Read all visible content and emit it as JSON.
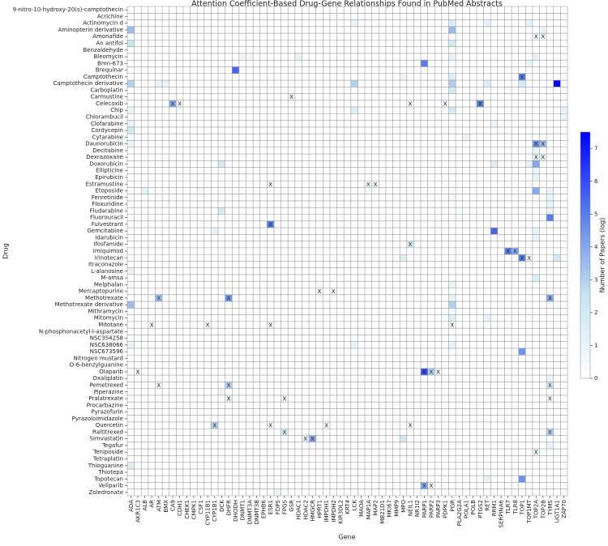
{
  "chart_data": {
    "type": "heatmap",
    "title": "Attention Coefficient-Based Drug-Gene Relationships Found in PubMed Abstracts",
    "x_label": "Gene",
    "y_label": "Drug",
    "colorbar_label": "Number of Papers (log)",
    "colorbar_lim": [
      0,
      7.5
    ],
    "colorbar_ticks": [
      0,
      1,
      2,
      3,
      4,
      5,
      6,
      7
    ],
    "colormap": [
      "#ffffff",
      "#c8e6f2",
      "#5a7ee8",
      "#0000ff"
    ],
    "rows": [
      "9-nitro-10-hydroxy-20(s)-camptothecin",
      "Acrichine",
      "Actinomycin d",
      "Aminopterin derivative",
      "Amonafide",
      "An antifol",
      "Benzaldehyde",
      "Bleomycin",
      "Bmn-673",
      "Brequinar",
      "Camptothecin",
      "Camptothecin derivative",
      "Carboplatin",
      "Carmustine",
      "Celecoxib",
      "Chip",
      "Chlorambucil",
      "Clofarabine",
      "Cordycepin",
      "Cytarabine",
      "Daunorubicin",
      "Decitabine",
      "Dexrazoxane",
      "Doxorubicin",
      "Ellipticine",
      "Epirubicin",
      "Estramustine",
      "Etoposide",
      "Fenretinide",
      "Floxuridine",
      "Fludarabine",
      "Fluorouracil",
      "Fulvestrant",
      "Gemcitabine",
      "Idarubicin",
      "Ifosfamide",
      "Imiquimod",
      "Irinotecan",
      "Itraconazole",
      "L-alanosine",
      "M-amsa",
      "Melphalan",
      "Mercaptopurine",
      "Methotrexate",
      "Methotrexate derivative",
      "Mithramycin",
      "Mitomycin",
      "Mitotane",
      "N-phosphonacetyl-l-aspartate",
      "NSC354258",
      "NSC638066",
      "NSC673596",
      "Nitrogen mustard",
      "O-6-benzylguanine",
      "Olaparib",
      "Oxaliplatin",
      "Pemetrexed",
      "Piperazine",
      "Pralatrexate",
      "Procarbazine",
      "Pyrazofurin",
      "Pyrazoloimidazole",
      "Quercetin",
      "Raltitrexed",
      "Simvastatin",
      "Tegafur",
      "Teniposide",
      "Tetraplatin",
      "Thioguanine",
      "Thiotepa",
      "Topotecan",
      "Veliparib",
      "Zoledronate"
    ],
    "columns": [
      "ADA",
      "AKR1C3",
      "ALB",
      "AR",
      "ATM",
      "BMX",
      "CA9",
      "CDH1",
      "CHEK1",
      "CMPK1",
      "CSF1",
      "CYP11B1",
      "CYP1B1",
      "DCK",
      "DHFR",
      "DHODH",
      "DNMT1",
      "DNMT3A",
      "DNMT3B",
      "EPHB6",
      "ESR1",
      "FDPS",
      "FPGS",
      "GSR",
      "HDAC1",
      "HDAC2",
      "HMGCR",
      "HPRT1",
      "IMPDH1",
      "IMPDH2",
      "KIR3DL2",
      "KRT4",
      "LCK",
      "MAOA",
      "MAP1A",
      "MAP2",
      "MB21D1",
      "MKI67",
      "MMP9",
      "MPO",
      "NEIL1",
      "NR1I2",
      "PARP1",
      "PARP2",
      "PARP3",
      "PDPK1",
      "PGR",
      "PLA2G2A",
      "POLA1",
      "POLB",
      "PTGS2",
      "RET",
      "RRM1",
      "SERPINA6",
      "TLR7",
      "TLR8",
      "TOP1",
      "TOP1MT",
      "TOP2A",
      "TOP2B",
      "TYMS",
      "UGT1A1",
      "ZAP70"
    ],
    "cells": [
      {
        "row": 2,
        "col": 32,
        "value": 1
      },
      {
        "row": 2,
        "col": 46,
        "value": 1.5
      },
      {
        "row": 2,
        "col": 51,
        "value": 1
      },
      {
        "row": 2,
        "col": 57,
        "value": 1
      },
      {
        "row": 3,
        "col": 0,
        "value": 3.5
      },
      {
        "row": 3,
        "col": 46,
        "value": 3.5
      },
      {
        "row": 3,
        "col": 59,
        "value": 1
      },
      {
        "row": 4,
        "col": 58,
        "value": 0.5,
        "label": "X"
      },
      {
        "row": 4,
        "col": 59,
        "value": 0.5,
        "label": "X"
      },
      {
        "row": 5,
        "col": 0,
        "value": 2.5
      },
      {
        "row": 5,
        "col": 46,
        "value": 2
      },
      {
        "row": 7,
        "col": 16,
        "value": 0.5
      },
      {
        "row": 7,
        "col": 17,
        "value": 0.5
      },
      {
        "row": 7,
        "col": 24,
        "value": 1
      },
      {
        "row": 7,
        "col": 46,
        "value": 1
      },
      {
        "row": 7,
        "col": 58,
        "value": 1
      },
      {
        "row": 8,
        "col": 42,
        "value": 5
      },
      {
        "row": 8,
        "col": 57,
        "value": 1
      },
      {
        "row": 9,
        "col": 15,
        "value": 5.5
      },
      {
        "row": 10,
        "col": 39,
        "value": 1
      },
      {
        "row": 10,
        "col": 46,
        "value": 1.5
      },
      {
        "row": 10,
        "col": 56,
        "value": 5,
        "label": "X"
      },
      {
        "row": 11,
        "col": 0,
        "value": 3
      },
      {
        "row": 11,
        "col": 4,
        "value": 1
      },
      {
        "row": 11,
        "col": 5,
        "value": 1
      },
      {
        "row": 11,
        "col": 32,
        "value": 3
      },
      {
        "row": 11,
        "col": 46,
        "value": 3
      },
      {
        "row": 11,
        "col": 51,
        "value": 1.5
      },
      {
        "row": 11,
        "col": 56,
        "value": 2
      },
      {
        "row": 11,
        "col": 61,
        "value": 7.4
      },
      {
        "row": 12,
        "col": 46,
        "value": 2
      },
      {
        "row": 12,
        "col": 56,
        "value": 0.5
      },
      {
        "row": 13,
        "col": 23,
        "value": 0.5,
        "label": "X"
      },
      {
        "row": 14,
        "col": 6,
        "value": 4,
        "label": "X"
      },
      {
        "row": 14,
        "col": 7,
        "value": 0.5,
        "label": "X"
      },
      {
        "row": 14,
        "col": 40,
        "value": 0.5,
        "label": "X"
      },
      {
        "row": 14,
        "col": 45,
        "value": 0.5,
        "label": "X"
      },
      {
        "row": 14,
        "col": 50,
        "value": 5,
        "label": "X"
      },
      {
        "row": 15,
        "col": 0,
        "value": 1
      },
      {
        "row": 15,
        "col": 32,
        "value": 1.5
      },
      {
        "row": 15,
        "col": 46,
        "value": 2
      },
      {
        "row": 15,
        "col": 62,
        "value": 1
      },
      {
        "row": 16,
        "col": 62,
        "value": 1
      },
      {
        "row": 17,
        "col": 0,
        "value": 1
      },
      {
        "row": 17,
        "col": 52,
        "value": 1
      },
      {
        "row": 18,
        "col": 0,
        "value": 2
      },
      {
        "row": 19,
        "col": 48,
        "value": 1
      },
      {
        "row": 20,
        "col": 0,
        "value": 1
      },
      {
        "row": 20,
        "col": 58,
        "value": 4.5,
        "label": "X"
      },
      {
        "row": 20,
        "col": 59,
        "value": 3.5,
        "label": "X"
      },
      {
        "row": 21,
        "col": 46,
        "value": 0.5
      },
      {
        "row": 21,
        "col": 58,
        "value": 1
      },
      {
        "row": 22,
        "col": 58,
        "value": 1,
        "label": "X"
      },
      {
        "row": 22,
        "col": 59,
        "value": 1,
        "label": "X"
      },
      {
        "row": 23,
        "col": 13,
        "value": 2
      },
      {
        "row": 23,
        "col": 52,
        "value": 1.5
      },
      {
        "row": 23,
        "col": 57,
        "value": 1
      },
      {
        "row": 23,
        "col": 58,
        "value": 4
      },
      {
        "row": 24,
        "col": 58,
        "value": 1
      },
      {
        "row": 25,
        "col": 39,
        "value": 0.5
      },
      {
        "row": 25,
        "col": 58,
        "value": 1
      },
      {
        "row": 26,
        "col": 20,
        "value": 0.5,
        "label": "X"
      },
      {
        "row": 26,
        "col": 34,
        "value": 0.5,
        "label": "X"
      },
      {
        "row": 26,
        "col": 35,
        "value": 0.5,
        "label": "X"
      },
      {
        "row": 27,
        "col": 2,
        "value": 1
      },
      {
        "row": 27,
        "col": 10,
        "value": 0.5
      },
      {
        "row": 27,
        "col": 58,
        "value": 4
      },
      {
        "row": 27,
        "col": 60,
        "value": 1
      },
      {
        "row": 28,
        "col": 46,
        "value": 0.5
      },
      {
        "row": 28,
        "col": 60,
        "value": 1
      },
      {
        "row": 29,
        "col": 60,
        "value": 1
      },
      {
        "row": 30,
        "col": 13,
        "value": 2
      },
      {
        "row": 30,
        "col": 60,
        "value": 1
      },
      {
        "row": 31,
        "col": 47,
        "value": 0.5
      },
      {
        "row": 31,
        "col": 60,
        "value": 5
      },
      {
        "row": 32,
        "col": 20,
        "value": 5,
        "label": "X"
      },
      {
        "row": 33,
        "col": 12,
        "value": 1
      },
      {
        "row": 33,
        "col": 52,
        "value": 5.5
      },
      {
        "row": 33,
        "col": 58,
        "value": 1
      },
      {
        "row": 34,
        "col": 58,
        "value": 1
      },
      {
        "row": 35,
        "col": 40,
        "value": 2,
        "label": "X"
      },
      {
        "row": 36,
        "col": 54,
        "value": 5,
        "label": "X"
      },
      {
        "row": 36,
        "col": 55,
        "value": 4,
        "label": "X"
      },
      {
        "row": 37,
        "col": 39,
        "value": 1.5
      },
      {
        "row": 37,
        "col": 56,
        "value": 5,
        "label": "X"
      },
      {
        "row": 37,
        "col": 57,
        "value": 0.5,
        "label": "X"
      },
      {
        "row": 37,
        "col": 61,
        "value": 2
      },
      {
        "row": 39,
        "col": 0,
        "value": 1
      },
      {
        "row": 40,
        "col": 58,
        "value": 1.5
      },
      {
        "row": 41,
        "col": 0,
        "value": 0.5
      },
      {
        "row": 41,
        "col": 46,
        "value": 1
      },
      {
        "row": 42,
        "col": 27,
        "value": 0.5,
        "label": "X"
      },
      {
        "row": 42,
        "col": 29,
        "value": 0.5,
        "label": "X"
      },
      {
        "row": 43,
        "col": 4,
        "value": 3.5,
        "label": "X"
      },
      {
        "row": 43,
        "col": 14,
        "value": 4.5,
        "label": "X"
      },
      {
        "row": 43,
        "col": 46,
        "value": 1
      },
      {
        "row": 43,
        "col": 60,
        "value": 4,
        "label": "X"
      },
      {
        "row": 44,
        "col": 0,
        "value": 3.5
      },
      {
        "row": 44,
        "col": 46,
        "value": 3
      },
      {
        "row": 45,
        "col": 46,
        "value": 0.5
      },
      {
        "row": 46,
        "col": 46,
        "value": 1.5
      },
      {
        "row": 46,
        "col": 51,
        "value": 1
      },
      {
        "row": 47,
        "col": 3,
        "value": 0.5,
        "label": "X"
      },
      {
        "row": 47,
        "col": 11,
        "value": 0.5,
        "label": "X"
      },
      {
        "row": 47,
        "col": 20,
        "value": 0.5,
        "label": "X"
      },
      {
        "row": 47,
        "col": 46,
        "value": 0.5,
        "label": "X"
      },
      {
        "row": 50,
        "col": 0,
        "value": 1
      },
      {
        "row": 50,
        "col": 32,
        "value": 1
      },
      {
        "row": 50,
        "col": 46,
        "value": 1
      },
      {
        "row": 51,
        "col": 56,
        "value": 4.5
      },
      {
        "row": 54,
        "col": 1,
        "value": 0.5,
        "label": "X"
      },
      {
        "row": 54,
        "col": 42,
        "value": 6,
        "label": "X"
      },
      {
        "row": 54,
        "col": 43,
        "value": 3,
        "label": "X"
      },
      {
        "row": 54,
        "col": 44,
        "value": 0.5,
        "label": "X"
      },
      {
        "row": 55,
        "col": 39,
        "value": 0.5
      },
      {
        "row": 55,
        "col": 60,
        "value": 1
      },
      {
        "row": 56,
        "col": 4,
        "value": 0.5,
        "label": "X"
      },
      {
        "row": 56,
        "col": 14,
        "value": 3,
        "label": "X"
      },
      {
        "row": 56,
        "col": 60,
        "value": 2,
        "label": "X"
      },
      {
        "row": 57,
        "col": 13,
        "value": 1
      },
      {
        "row": 58,
        "col": 14,
        "value": 1,
        "label": "X"
      },
      {
        "row": 58,
        "col": 22,
        "value": 0.5,
        "label": "X"
      },
      {
        "row": 58,
        "col": 60,
        "value": 0.5,
        "label": "X"
      },
      {
        "row": 62,
        "col": 12,
        "value": 3,
        "label": "X"
      },
      {
        "row": 62,
        "col": 20,
        "value": 0.5,
        "label": "X"
      },
      {
        "row": 62,
        "col": 28,
        "value": 0.5,
        "label": "X"
      },
      {
        "row": 62,
        "col": 40,
        "value": 0.5,
        "label": "X"
      },
      {
        "row": 63,
        "col": 22,
        "value": 2,
        "label": "X"
      },
      {
        "row": 63,
        "col": 60,
        "value": 3,
        "label": "X"
      },
      {
        "row": 64,
        "col": 25,
        "value": 1,
        "label": "X"
      },
      {
        "row": 64,
        "col": 26,
        "value": 4,
        "label": "X"
      },
      {
        "row": 64,
        "col": 39,
        "value": 2
      },
      {
        "row": 65,
        "col": 60,
        "value": 1
      },
      {
        "row": 66,
        "col": 58,
        "value": 1,
        "label": "X"
      },
      {
        "row": 68,
        "col": 0,
        "value": 1.5
      },
      {
        "row": 70,
        "col": 51,
        "value": 1
      },
      {
        "row": 70,
        "col": 56,
        "value": 4.5
      },
      {
        "row": 71,
        "col": 42,
        "value": 4,
        "label": "X"
      },
      {
        "row": 71,
        "col": 43,
        "value": 0.5,
        "label": "X"
      },
      {
        "row": 72,
        "col": 21,
        "value": 1
      }
    ]
  }
}
